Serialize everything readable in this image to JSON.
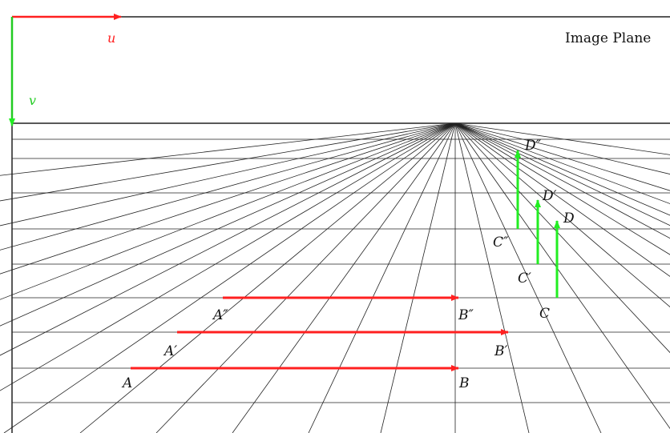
{
  "diagram": {
    "title": "Image Plane",
    "axes": {
      "u": {
        "label": "u",
        "color": "#ff2020"
      },
      "v": {
        "label": "v",
        "color": "#22cc22"
      }
    },
    "points": {
      "A": "A",
      "A1": "A′",
      "A2": "A″",
      "B": "B",
      "B1": "B′",
      "B2": "B″",
      "C": "C",
      "C1": "C′",
      "C2": "C″",
      "D": "D",
      "D1": "D′",
      "D2": "D″"
    },
    "colors": {
      "horizontal_arrows": "#ff2020",
      "vertical_arrows": "#22ee22",
      "grid": "#222222"
    }
  }
}
